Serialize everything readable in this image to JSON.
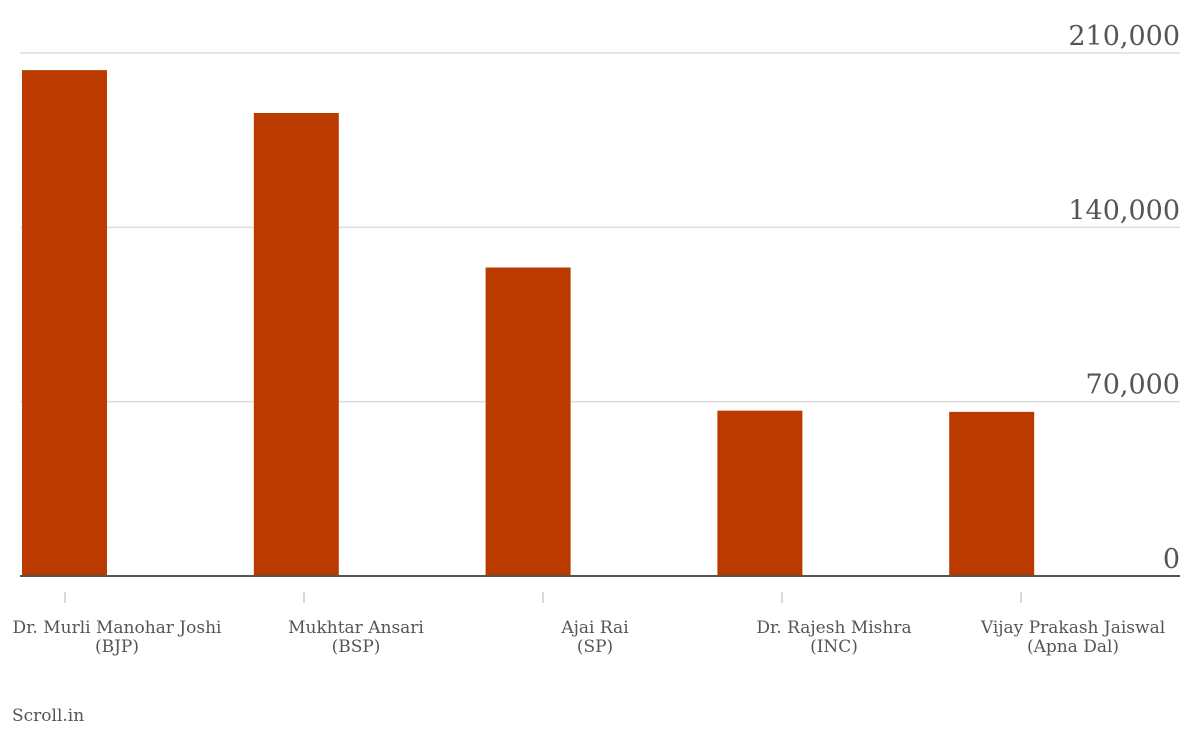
{
  "chart_data": {
    "type": "bar",
    "categories": [
      [
        "Dr. Murli Manohar Joshi",
        "(BJP)"
      ],
      [
        "Mukhtar Ansari",
        "(BSP)"
      ],
      [
        "Ajai Rai",
        "(SP)"
      ],
      [
        "Dr. Rajesh Mishra",
        "(INC)"
      ],
      [
        "Vijay Prakash Jaiswal",
        "(Apna Dal)"
      ]
    ],
    "values": [
      203122,
      185911,
      123874,
      66386,
      65906
    ],
    "ylim": [
      0,
      210000
    ],
    "yticks": [
      "0",
      "70,000",
      "140,000",
      "210,000"
    ],
    "ytick_values": [
      0,
      70000,
      140000,
      210000
    ],
    "axis_side": "right",
    "grid": true,
    "title": "",
    "xlabel": "",
    "ylabel": "",
    "bar_color": "#bb3a00"
  },
  "credit": "Scroll.in"
}
